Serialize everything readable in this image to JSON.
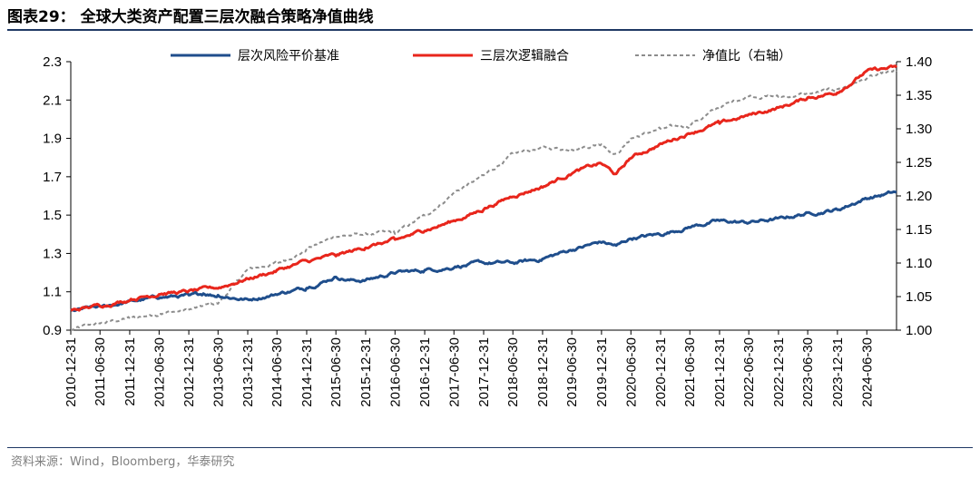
{
  "header": {
    "title": "图表29： 全球大类资产配置三层次融合策略净值曲线"
  },
  "footer": {
    "source": "资料来源：Wind，Bloomberg，华泰研究"
  },
  "colors": {
    "series1": "#1f4e8c",
    "series2": "#e8261c",
    "series3": "#8c8c8c",
    "axis": "#000000",
    "rule": "#1f3864"
  },
  "chart_data": {
    "type": "line",
    "title": "",
    "xlabel": "",
    "ylabel": "",
    "ylim": [
      0.9,
      2.3
    ],
    "y2lim": [
      1.0,
      1.4
    ],
    "yticks": [
      0.9,
      1.1,
      1.3,
      1.5,
      1.7,
      1.9,
      2.1,
      2.3
    ],
    "y2ticks": [
      1.0,
      1.05,
      1.1,
      1.15,
      1.2,
      1.25,
      1.3,
      1.35,
      1.4
    ],
    "y2tick_labels": [
      "1.00",
      "1.05",
      "1.10",
      "1.15",
      "1.20",
      "1.25",
      "1.30",
      "1.35",
      "1.40"
    ],
    "xlim": [
      "2010-12-31",
      "2024-12-31"
    ],
    "xticks": [
      "2010-12-31",
      "2011-06-30",
      "2011-12-31",
      "2012-06-30",
      "2012-12-31",
      "2013-06-30",
      "2013-12-31",
      "2014-06-30",
      "2014-12-31",
      "2015-06-30",
      "2015-12-31",
      "2016-06-30",
      "2016-12-31",
      "2017-06-30",
      "2017-12-31",
      "2018-06-30",
      "2018-12-31",
      "2019-06-30",
      "2019-12-31",
      "2020-06-30",
      "2020-12-31",
      "2021-06-30",
      "2021-12-31",
      "2022-06-30",
      "2022-12-31",
      "2023-06-30",
      "2023-12-31",
      "2024-06-30"
    ],
    "legend_position": "top",
    "grid": false,
    "series": [
      {
        "name": "层次风险平价基准",
        "axis": "left",
        "style": "solid",
        "points": [
          [
            "2010-12-31",
            1.0
          ],
          [
            "2011-06-30",
            1.02
          ],
          [
            "2011-12-31",
            1.05
          ],
          [
            "2012-06-30",
            1.07
          ],
          [
            "2012-12-31",
            1.08
          ],
          [
            "2013-03-31",
            1.09
          ],
          [
            "2013-06-30",
            1.08
          ],
          [
            "2013-12-31",
            1.06
          ],
          [
            "2014-06-30",
            1.09
          ],
          [
            "2014-12-31",
            1.12
          ],
          [
            "2015-06-30",
            1.18
          ],
          [
            "2015-09-30",
            1.16
          ],
          [
            "2015-12-31",
            1.16
          ],
          [
            "2016-06-30",
            1.2
          ],
          [
            "2016-12-31",
            1.21
          ],
          [
            "2017-06-30",
            1.23
          ],
          [
            "2017-12-31",
            1.25
          ],
          [
            "2018-06-30",
            1.25
          ],
          [
            "2018-12-31",
            1.27
          ],
          [
            "2019-06-30",
            1.32
          ],
          [
            "2019-12-31",
            1.36
          ],
          [
            "2020-03-31",
            1.34
          ],
          [
            "2020-06-30",
            1.38
          ],
          [
            "2020-12-31",
            1.4
          ],
          [
            "2021-06-30",
            1.44
          ],
          [
            "2021-12-31",
            1.47
          ],
          [
            "2022-06-30",
            1.46
          ],
          [
            "2022-12-31",
            1.48
          ],
          [
            "2023-06-30",
            1.51
          ],
          [
            "2023-12-31",
            1.53
          ],
          [
            "2024-06-30",
            1.59
          ],
          [
            "2024-12-31",
            1.62
          ]
        ]
      },
      {
        "name": "三层次逻辑融合",
        "axis": "left",
        "style": "solid",
        "points": [
          [
            "2010-12-31",
            1.0
          ],
          [
            "2011-06-30",
            1.03
          ],
          [
            "2011-12-31",
            1.06
          ],
          [
            "2012-06-30",
            1.09
          ],
          [
            "2012-12-31",
            1.1
          ],
          [
            "2013-06-30",
            1.12
          ],
          [
            "2013-12-31",
            1.17
          ],
          [
            "2014-06-30",
            1.21
          ],
          [
            "2014-12-31",
            1.26
          ],
          [
            "2015-06-30",
            1.29
          ],
          [
            "2015-12-31",
            1.33
          ],
          [
            "2016-06-30",
            1.37
          ],
          [
            "2016-12-31",
            1.42
          ],
          [
            "2017-06-30",
            1.47
          ],
          [
            "2017-12-31",
            1.53
          ],
          [
            "2018-06-30",
            1.6
          ],
          [
            "2018-12-31",
            1.65
          ],
          [
            "2019-06-30",
            1.72
          ],
          [
            "2019-12-31",
            1.77
          ],
          [
            "2020-03-31",
            1.71
          ],
          [
            "2020-06-30",
            1.8
          ],
          [
            "2020-12-31",
            1.87
          ],
          [
            "2021-06-30",
            1.93
          ],
          [
            "2021-12-31",
            1.98
          ],
          [
            "2022-06-30",
            2.02
          ],
          [
            "2022-12-31",
            2.06
          ],
          [
            "2023-06-30",
            2.11
          ],
          [
            "2023-12-31",
            2.14
          ],
          [
            "2024-06-30",
            2.25
          ],
          [
            "2024-12-31",
            2.27
          ]
        ]
      },
      {
        "name": "净值比（右轴）",
        "axis": "right",
        "style": "dashed",
        "points": [
          [
            "2010-12-31",
            1.0
          ],
          [
            "2011-06-30",
            1.01
          ],
          [
            "2011-12-31",
            1.018
          ],
          [
            "2012-06-30",
            1.025
          ],
          [
            "2012-12-31",
            1.03
          ],
          [
            "2013-06-30",
            1.04
          ],
          [
            "2013-12-31",
            1.09
          ],
          [
            "2014-06-30",
            1.1
          ],
          [
            "2014-12-31",
            1.12
          ],
          [
            "2015-06-30",
            1.14
          ],
          [
            "2015-12-31",
            1.143
          ],
          [
            "2016-06-30",
            1.145
          ],
          [
            "2016-12-31",
            1.17
          ],
          [
            "2017-06-30",
            1.205
          ],
          [
            "2017-12-31",
            1.23
          ],
          [
            "2018-06-30",
            1.262
          ],
          [
            "2018-12-31",
            1.272
          ],
          [
            "2019-06-30",
            1.27
          ],
          [
            "2019-12-31",
            1.278
          ],
          [
            "2020-03-31",
            1.262
          ],
          [
            "2020-06-30",
            1.285
          ],
          [
            "2020-12-31",
            1.3
          ],
          [
            "2021-06-30",
            1.305
          ],
          [
            "2021-12-31",
            1.332
          ],
          [
            "2022-06-30",
            1.35
          ],
          [
            "2022-12-31",
            1.348
          ],
          [
            "2023-06-30",
            1.352
          ],
          [
            "2023-12-31",
            1.358
          ],
          [
            "2024-06-30",
            1.375
          ],
          [
            "2024-12-31",
            1.385
          ]
        ]
      }
    ]
  }
}
